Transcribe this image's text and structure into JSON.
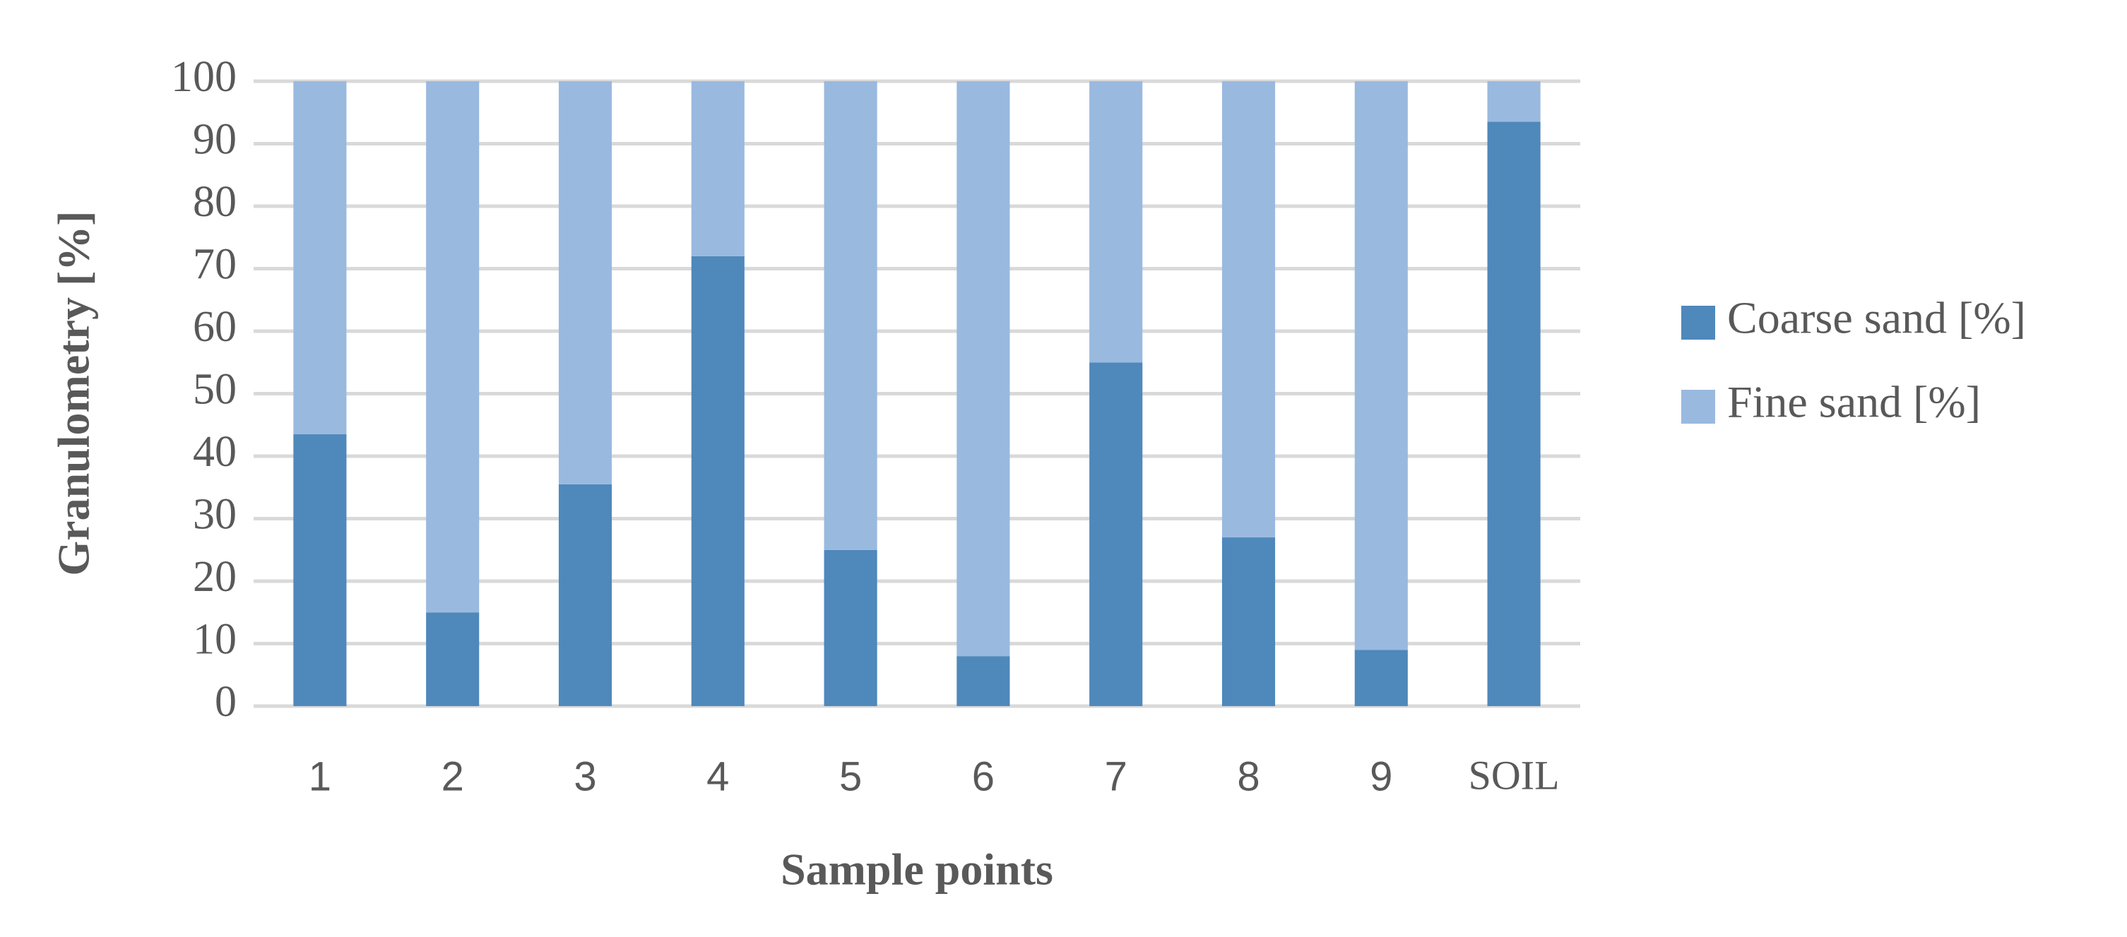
{
  "chart_data": {
    "type": "stacked_bar",
    "x_label": "Sample points",
    "y_label": "Granulometry [%]",
    "categories": [
      "1",
      "2",
      "3",
      "4",
      "5",
      "6",
      "7",
      "8",
      "9",
      "SOIL"
    ],
    "series": [
      {
        "name": "Coarse sand [%]",
        "color": "#4f88bb",
        "values": [
          43.5,
          15,
          35.5,
          72,
          25,
          8,
          55,
          27,
          9,
          93.5
        ]
      },
      {
        "name": "Fine sand [%]",
        "color": "#9ab9df",
        "values": [
          56.5,
          85,
          64.5,
          28,
          75,
          92,
          45,
          73,
          91,
          6.5
        ]
      }
    ],
    "ylim": [
      0,
      100
    ],
    "yticks": [
      0,
      10,
      20,
      30,
      40,
      50,
      60,
      70,
      80,
      90,
      100
    ],
    "grid": true,
    "legend": "right"
  }
}
